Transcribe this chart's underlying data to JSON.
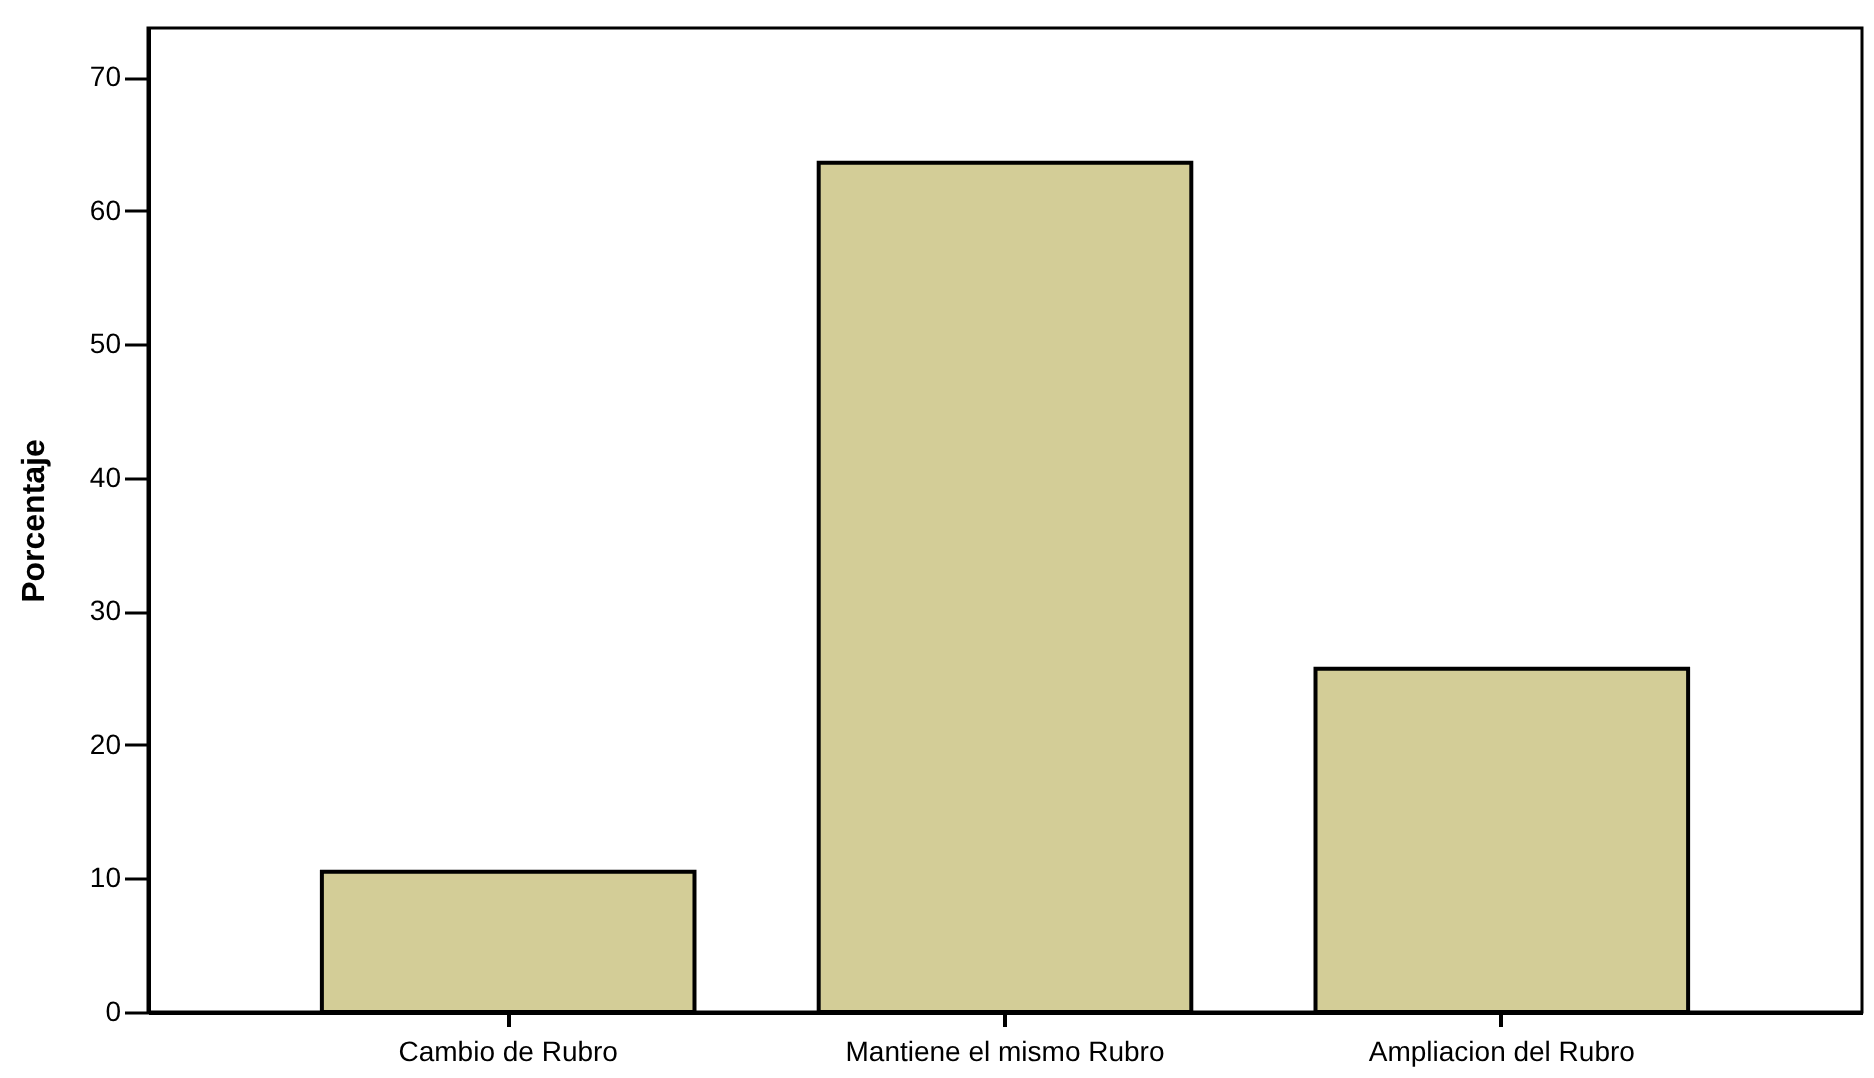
{
  "chart_data": {
    "type": "bar",
    "ylabel": "Porcentaje",
    "categories": [
      "Cambio de  Rubro",
      "Mantiene el mismo Rubro",
      "Ampliacion del Rubro"
    ],
    "values": [
      10.5,
      63.6,
      25.7
    ],
    "color": "#d3cd97",
    "ylim": [
      0,
      73.7
    ],
    "yticks": [
      0,
      10,
      20,
      30,
      40,
      50,
      60,
      70
    ],
    "grid": false
  }
}
